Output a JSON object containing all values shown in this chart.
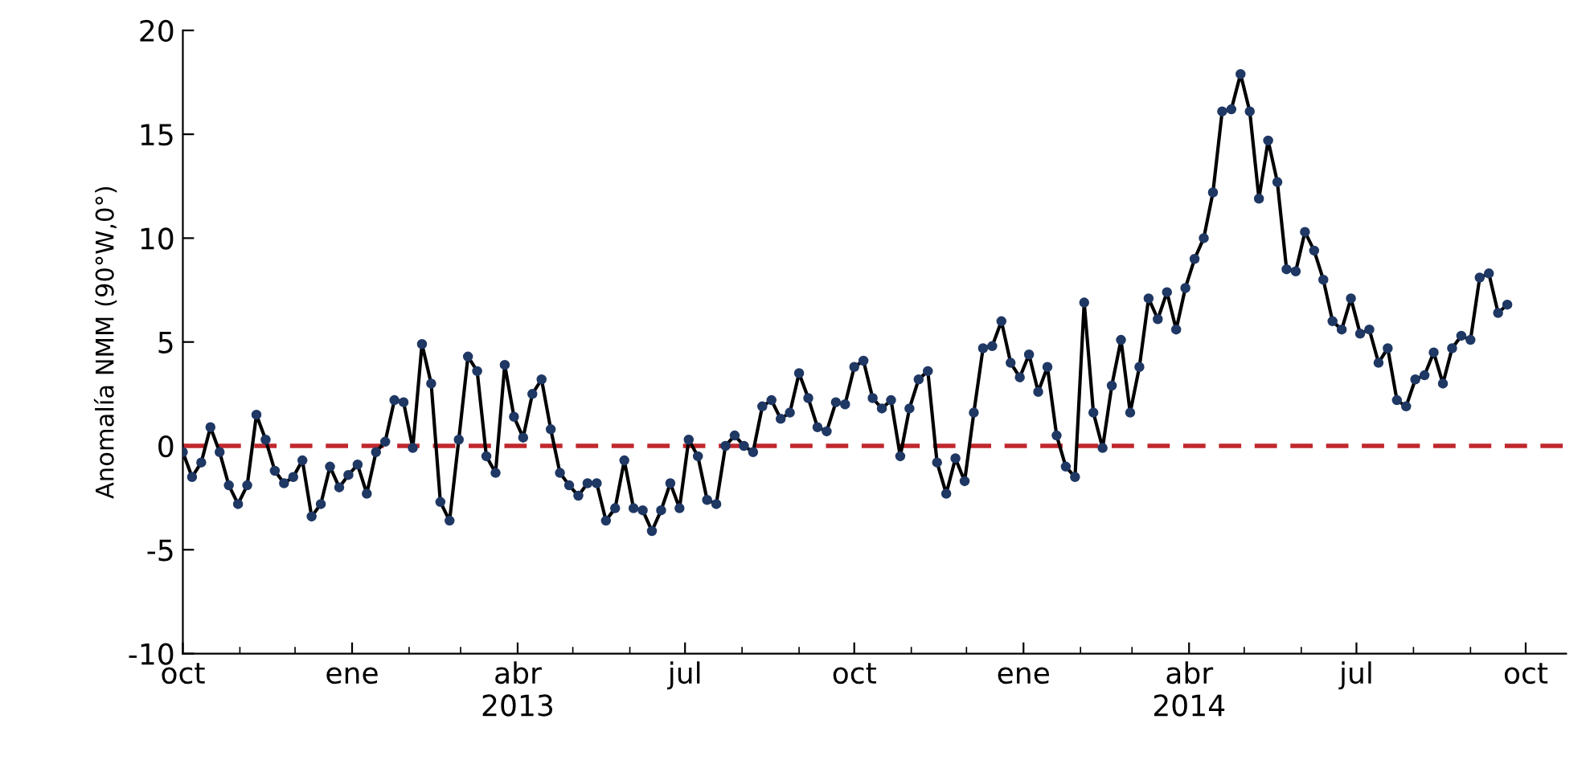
{
  "chart_data": {
    "type": "line",
    "ylabel": "Anomalía NMM (90°W,0°)",
    "x": [
      "2012-10-01",
      "2012-10-06",
      "2012-10-11",
      "2012-10-16",
      "2012-10-21",
      "2012-10-26",
      "2012-10-31",
      "2012-11-05",
      "2012-11-10",
      "2012-11-15",
      "2012-11-20",
      "2012-11-25",
      "2012-11-30",
      "2012-12-05",
      "2012-12-10",
      "2012-12-15",
      "2012-12-20",
      "2012-12-25",
      "2012-12-30",
      "2013-01-04",
      "2013-01-09",
      "2013-01-14",
      "2013-01-19",
      "2013-01-24",
      "2013-01-29",
      "2013-02-03",
      "2013-02-08",
      "2013-02-13",
      "2013-02-18",
      "2013-02-23",
      "2013-02-28",
      "2013-03-05",
      "2013-03-10",
      "2013-03-15",
      "2013-03-20",
      "2013-03-25",
      "2013-03-30",
      "2013-04-04",
      "2013-04-09",
      "2013-04-14",
      "2013-04-19",
      "2013-04-24",
      "2013-04-29",
      "2013-05-04",
      "2013-05-09",
      "2013-05-14",
      "2013-05-19",
      "2013-05-24",
      "2013-05-29",
      "2013-06-03",
      "2013-06-08",
      "2013-06-13",
      "2013-06-18",
      "2013-06-23",
      "2013-06-28",
      "2013-07-03",
      "2013-07-08",
      "2013-07-13",
      "2013-07-18",
      "2013-07-23",
      "2013-07-28",
      "2013-08-02",
      "2013-08-07",
      "2013-08-12",
      "2013-08-17",
      "2013-08-22",
      "2013-08-27",
      "2013-09-01",
      "2013-09-06",
      "2013-09-11",
      "2013-09-16",
      "2013-09-21",
      "2013-09-26",
      "2013-10-01",
      "2013-10-06",
      "2013-10-11",
      "2013-10-16",
      "2013-10-21",
      "2013-10-26",
      "2013-10-31",
      "2013-11-05",
      "2013-11-10",
      "2013-11-15",
      "2013-11-20",
      "2013-11-25",
      "2013-11-30",
      "2013-12-05",
      "2013-12-10",
      "2013-12-15",
      "2013-12-20",
      "2013-12-25",
      "2013-12-30",
      "2014-01-04",
      "2014-01-09",
      "2014-01-14",
      "2014-01-19",
      "2014-01-24",
      "2014-01-29",
      "2014-02-03",
      "2014-02-08",
      "2014-02-13",
      "2014-02-18",
      "2014-02-23",
      "2014-02-28",
      "2014-03-05",
      "2014-03-10",
      "2014-03-15",
      "2014-03-20",
      "2014-03-25",
      "2014-03-30",
      "2014-04-04",
      "2014-04-09",
      "2014-04-14",
      "2014-04-19",
      "2014-04-24",
      "2014-04-29",
      "2014-05-04",
      "2014-05-09",
      "2014-05-14",
      "2014-05-19",
      "2014-05-24",
      "2014-05-29",
      "2014-06-03",
      "2014-06-08",
      "2014-06-13",
      "2014-06-18",
      "2014-06-23",
      "2014-06-28",
      "2014-07-03",
      "2014-07-08",
      "2014-07-13",
      "2014-07-18",
      "2014-07-23",
      "2014-07-28",
      "2014-08-02",
      "2014-08-07",
      "2014-08-12",
      "2014-08-17",
      "2014-08-22",
      "2014-08-27",
      "2014-09-01",
      "2014-09-06",
      "2014-09-11",
      "2014-09-16",
      "2014-09-21"
    ],
    "series": [
      {
        "color": "#000000",
        "values": [
          -0.3,
          -1.5,
          -0.8,
          0.9,
          -0.3,
          -1.9,
          -2.8,
          -1.9,
          1.5,
          0.3,
          -1.2,
          -1.8,
          -1.5,
          -0.7,
          -3.4,
          -2.8,
          -1.0,
          -2.0,
          -1.4,
          -0.9,
          -2.3,
          -0.3,
          0.2,
          2.2,
          2.1,
          -0.1,
          4.9,
          3.0,
          -2.7,
          -3.6,
          0.3,
          4.3,
          3.6,
          -0.5,
          -1.3,
          3.9,
          1.4,
          0.4,
          2.5,
          3.2,
          0.8,
          -1.3,
          -1.9,
          -2.4,
          -1.8,
          -1.8,
          -3.6,
          -3.0,
          -0.7,
          -3.0,
          -3.1,
          -4.1,
          -3.1,
          -1.8,
          -3.0,
          0.3,
          -0.5,
          -2.6,
          -2.8,
          0.0,
          0.5,
          0.0,
          -0.3,
          1.9,
          2.2,
          1.3,
          1.6,
          3.5,
          2.3,
          0.9,
          0.7,
          2.1,
          2.0,
          3.8,
          4.1,
          2.3,
          1.8,
          2.2,
          -0.5,
          1.8,
          3.2,
          3.6,
          -0.8,
          -2.3,
          -0.6,
          -1.7,
          1.6,
          4.7,
          4.8,
          6.0,
          4.0,
          3.3,
          4.4,
          2.6,
          3.8,
          0.5,
          -1.0,
          -1.5,
          6.9,
          1.6,
          -0.1,
          2.9,
          5.1,
          1.6,
          3.8,
          7.1,
          6.1,
          7.4,
          5.6,
          7.6,
          9.0,
          10.0,
          12.2,
          16.1,
          16.2,
          17.9,
          16.1,
          11.9,
          14.7,
          12.7,
          8.5,
          8.4,
          10.3,
          9.4,
          8.0,
          6.0,
          5.6,
          7.1,
          5.4,
          5.6,
          4.0,
          4.7,
          2.2,
          1.9,
          3.2,
          3.4,
          4.5,
          3.0,
          4.7,
          5.3,
          5.1,
          8.1,
          8.3,
          6.4,
          6.8
        ]
      }
    ],
    "marker": "circle",
    "line_style": "solid",
    "xlim": [
      "2012-10-01",
      "2014-10-23"
    ],
    "xticks": [
      {
        "value": "2012-10-01",
        "label": "oct"
      },
      {
        "value": "2013-01-01",
        "label": "ene"
      },
      {
        "value": "2013-04-01",
        "label": "abr\n2013"
      },
      {
        "value": "2013-07-01",
        "label": "jul"
      },
      {
        "value": "2013-10-01",
        "label": "oct"
      },
      {
        "value": "2014-01-01",
        "label": "ene"
      },
      {
        "value": "2014-04-01",
        "label": "abr\n2014"
      },
      {
        "value": "2014-07-01",
        "label": "jul"
      },
      {
        "value": "2014-10-01",
        "label": "oct"
      }
    ],
    "ylim": [
      -10,
      20
    ],
    "yticks": [
      -10,
      -5,
      0,
      5,
      10,
      15,
      20
    ],
    "ref_lines": [
      {
        "axis": "y",
        "value": 0,
        "color": "#c0282d",
        "line_style": "dashed"
      }
    ],
    "grid": false,
    "legend": false
  }
}
